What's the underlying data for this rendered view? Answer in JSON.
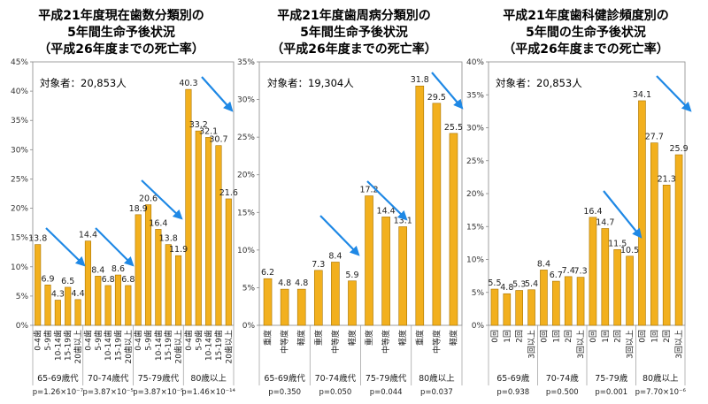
{
  "chart_data": [
    {
      "type": "bar",
      "title_lines": [
        "平成21年度現在歯数分類別の",
        "5年間生命予後状況",
        "（平成26年度までの死亡率）"
      ],
      "subject": "対象者：20,853人",
      "ylim": [
        0,
        45
      ],
      "yticks": [
        "0%",
        "5%",
        "10%",
        "15%",
        "20%",
        "25%",
        "30%",
        "35%",
        "40%",
        "45%"
      ],
      "categories": [
        "0-4歯",
        "5-9歯",
        "10-14歯",
        "15-19歯",
        "20歯以上",
        "0-4歯",
        "5-9歯",
        "10-14歯",
        "15-19歯",
        "20歯以上",
        "0-4歯",
        "5-9歯",
        "10-14歯",
        "15-19歯",
        "20歯以上",
        "0-4歯",
        "5-9歯",
        "10-14歯",
        "15-19歯",
        "20歯以上"
      ],
      "values": [
        13.8,
        6.9,
        4.3,
        6.5,
        4.4,
        14.4,
        8.4,
        6.8,
        8.6,
        6.8,
        18.9,
        20.6,
        16.4,
        13.8,
        11.9,
        40.3,
        33.2,
        32.1,
        30.7,
        21.6
      ],
      "value_labels": [
        "13.8",
        "6.9",
        "4.3",
        "6.5",
        "4.4",
        "14.4",
        "8.4",
        "6.8",
        "8.6",
        "6.8",
        "18.9",
        "20.6",
        "16.4",
        "13.8",
        "11.9",
        "40.3",
        "33.2",
        "32.1",
        "30.7",
        "21.6"
      ],
      "groups": [
        {
          "label": "65-69歳代",
          "p": "p=1.26×10⁻⁷"
        },
        {
          "label": "70-74歳代",
          "p": "p=3.87×10⁻⁵"
        },
        {
          "label": "75-79歳代",
          "p": "p=3.87×10⁻⁵"
        },
        {
          "label": "80歳以上",
          "p": "p=1.46×10⁻¹⁴"
        }
      ]
    },
    {
      "type": "bar",
      "title_lines": [
        "平成21年度歯周病分類別の",
        "5年間生命予後状況",
        "（平成26年度までの死亡率）"
      ],
      "subject": "対象者：19,304人",
      "ylim": [
        0,
        35
      ],
      "yticks": [
        "0%",
        "5%",
        "10%",
        "15%",
        "20%",
        "25%",
        "30%",
        "35%"
      ],
      "categories": [
        "重度",
        "中等度",
        "軽度",
        "重度",
        "中等度",
        "軽度",
        "重度",
        "中等度",
        "軽度",
        "重度",
        "中等度",
        "軽度"
      ],
      "values": [
        6.2,
        4.8,
        4.8,
        7.3,
        8.4,
        5.9,
        17.2,
        14.4,
        13.1,
        31.8,
        29.5,
        25.5
      ],
      "value_labels": [
        "6.2",
        "4.8",
        "4.8",
        "7.3",
        "8.4",
        "5.9",
        "17.2",
        "14.4",
        "13.1",
        "31.8",
        "29.5",
        "25.5"
      ],
      "groups": [
        {
          "label": "65-69歳代",
          "p": "p=0.350"
        },
        {
          "label": "70-74歳代",
          "p": "p=0.050"
        },
        {
          "label": "75-79歳代",
          "p": "p=0.044"
        },
        {
          "label": "80歳以上",
          "p": "p=0.037"
        }
      ]
    },
    {
      "type": "bar",
      "title_lines": [
        "平成21年度歯科健診頻度別の",
        "5年間の生命予後状況",
        "（平成26年度までの死亡率）"
      ],
      "subject": "対象者：20,853人",
      "ylim": [
        0,
        40
      ],
      "yticks": [
        "0%",
        "5%",
        "10%",
        "15%",
        "20%",
        "25%",
        "30%",
        "35%",
        "40%"
      ],
      "categories": [
        "0回",
        "1回",
        "2回",
        "3回以上",
        "0回",
        "1回",
        "2回",
        "3回以上",
        "0回",
        "1回",
        "2回",
        "3回以上",
        "0回",
        "1回",
        "2回",
        "3回以上"
      ],
      "values": [
        5.5,
        4.8,
        5.3,
        5.4,
        8.4,
        6.7,
        7.4,
        7.3,
        16.4,
        14.7,
        11.5,
        10.5,
        34.1,
        27.7,
        21.3,
        25.9
      ],
      "value_labels": [
        "5.5",
        "4.8",
        "5.3",
        "5.4",
        "8.4",
        "6.7",
        "7.4",
        "7.3",
        "16.4",
        "14.7",
        "11.5",
        "10.5",
        "34.1",
        "27.7",
        "21.3",
        "25.9"
      ],
      "groups": [
        {
          "label": "65-69歳",
          "p": "p=0.938"
        },
        {
          "label": "70-74歳",
          "p": "p=0.500"
        },
        {
          "label": "75-79歳",
          "p": "p=0.001"
        },
        {
          "label": "80歳以上",
          "p": "p=7.70×10⁻⁶"
        }
      ]
    }
  ]
}
